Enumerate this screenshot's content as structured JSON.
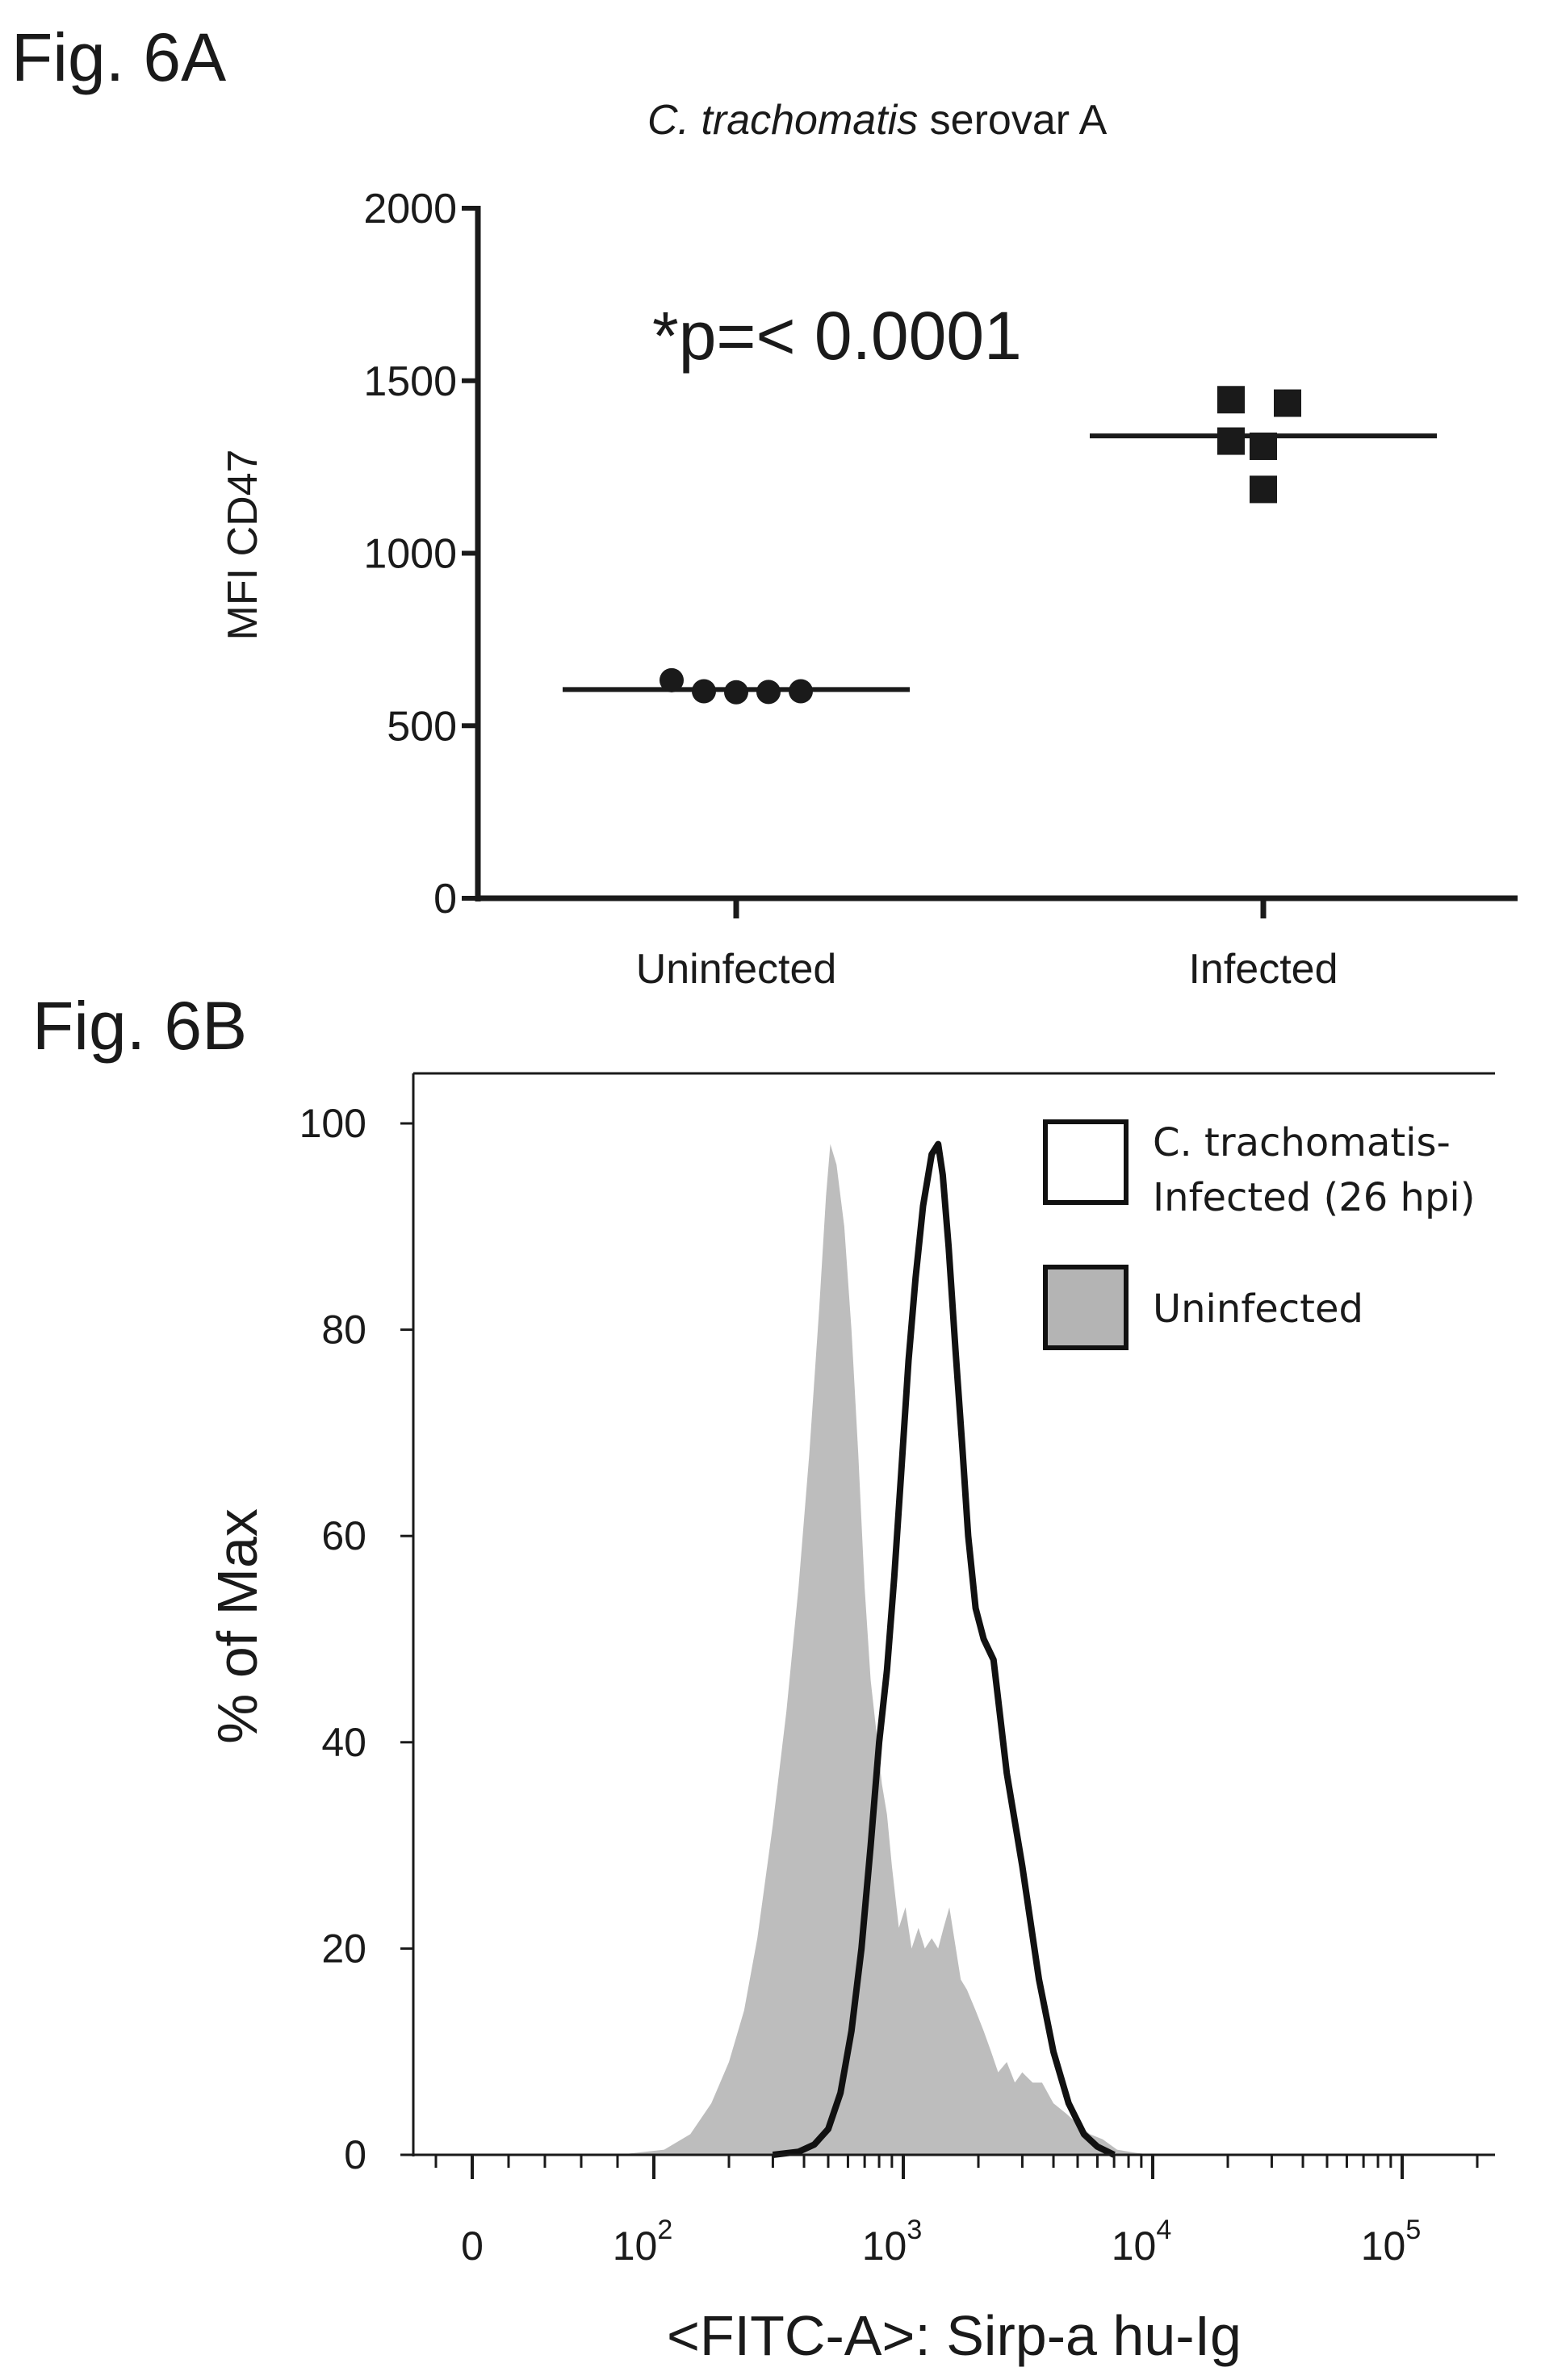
{
  "figure_a_label": "Fig. 6A",
  "figure_b_label": "Fig. 6B",
  "chart_data": [
    {
      "type": "scatter",
      "title_italic": "C. trachomatis",
      "title_rest": " serovar A",
      "ylabel": "MFI CD47",
      "ylim": [
        0,
        2000
      ],
      "yticks": [
        "0",
        "500",
        "1000",
        "1500",
        "2000"
      ],
      "categories": [
        "Uninfected",
        "Infected"
      ],
      "annotation": "*p=< 0.0001",
      "series": [
        {
          "category": "Uninfected",
          "marker": "circle",
          "mean": 605,
          "points": [
            {
              "x": -0.16,
              "y": 632
            },
            {
              "x": -0.08,
              "y": 600
            },
            {
              "x": 0.0,
              "y": 597
            },
            {
              "x": 0.08,
              "y": 598
            },
            {
              "x": 0.16,
              "y": 600
            }
          ]
        },
        {
          "category": "Infected",
          "marker": "square",
          "mean": 1340,
          "points": [
            {
              "x": -0.08,
              "y": 1445
            },
            {
              "x": 0.06,
              "y": 1435
            },
            {
              "x": -0.08,
              "y": 1325
            },
            {
              "x": 0.0,
              "y": 1310
            },
            {
              "x": 0.0,
              "y": 1185
            }
          ]
        }
      ],
      "grid": false
    },
    {
      "type": "area",
      "xscale": "biexponential",
      "xlabel": "<FITC-A>: Sirp-a hu-Ig",
      "ylabel": "% of Max",
      "ylim": [
        0,
        100
      ],
      "yticks": [
        "0",
        "20",
        "40",
        "60",
        "80",
        "100"
      ],
      "xticks": [
        {
          "value": 0,
          "base": "0",
          "exp": ""
        },
        {
          "value": 100,
          "base": "10",
          "exp": "2"
        },
        {
          "value": 1000,
          "base": "10",
          "exp": "3"
        },
        {
          "value": 10000,
          "base": "10",
          "exp": "4"
        },
        {
          "value": 100000,
          "base": "10",
          "exp": "5"
        }
      ],
      "legend": [
        {
          "label_line1": "C. trachomatis-",
          "label_line2": "Infected (26 hpi)",
          "fill": "#ffffff",
          "stroke": "#111111"
        },
        {
          "label_line1": "Uninfected",
          "label_line2": "",
          "fill": "#b4b4b4",
          "stroke": "#111111"
        }
      ],
      "legend_position": "top-right",
      "series": [
        {
          "name": "Uninfected",
          "style": "filled",
          "color": "#bdbdbd",
          "points": [
            [
              80,
              0
            ],
            [
              110,
              0.5
            ],
            [
              140,
              2
            ],
            [
              170,
              5
            ],
            [
              200,
              9
            ],
            [
              230,
              14
            ],
            [
              260,
              21
            ],
            [
              300,
              32
            ],
            [
              340,
              43
            ],
            [
              380,
              55
            ],
            [
              420,
              68
            ],
            [
              460,
              82
            ],
            [
              490,
              93
            ],
            [
              510,
              98
            ],
            [
              540,
              96
            ],
            [
              580,
              90
            ],
            [
              620,
              80
            ],
            [
              660,
              68
            ],
            [
              700,
              55
            ],
            [
              740,
              46
            ],
            [
              780,
              41
            ],
            [
              820,
              36
            ],
            [
              860,
              33
            ],
            [
              900,
              28
            ],
            [
              960,
              22
            ],
            [
              1020,
              24
            ],
            [
              1080,
              20
            ],
            [
              1150,
              22
            ],
            [
              1220,
              20
            ],
            [
              1300,
              21
            ],
            [
              1380,
              20
            ],
            [
              1450,
              22
            ],
            [
              1530,
              24
            ],
            [
              1600,
              21
            ],
            [
              1700,
              17
            ],
            [
              1800,
              16
            ],
            [
              1950,
              14
            ],
            [
              2100,
              12
            ],
            [
              2250,
              10
            ],
            [
              2400,
              8
            ],
            [
              2600,
              9
            ],
            [
              2800,
              7
            ],
            [
              3000,
              8
            ],
            [
              3300,
              7
            ],
            [
              3600,
              7
            ],
            [
              4000,
              5
            ],
            [
              4500,
              4
            ],
            [
              5000,
              3
            ],
            [
              5600,
              2
            ],
            [
              6300,
              1.5
            ],
            [
              7200,
              0.5
            ],
            [
              8500,
              0.2
            ],
            [
              10000,
              0
            ]
          ]
        },
        {
          "name": "C. trachomatis-Infected (26 hpi)",
          "style": "outline",
          "color": "#111111",
          "points": [
            [
              300,
              0
            ],
            [
              380,
              0.3
            ],
            [
              440,
              1
            ],
            [
              500,
              2.5
            ],
            [
              560,
              6
            ],
            [
              620,
              12
            ],
            [
              680,
              20
            ],
            [
              740,
              30
            ],
            [
              800,
              40
            ],
            [
              860,
              47
            ],
            [
              920,
              56
            ],
            [
              980,
              66
            ],
            [
              1050,
              77
            ],
            [
              1120,
              85
            ],
            [
              1200,
              92
            ],
            [
              1300,
              97
            ],
            [
              1380,
              98
            ],
            [
              1440,
              95
            ],
            [
              1520,
              88
            ],
            [
              1620,
              78
            ],
            [
              1720,
              69
            ],
            [
              1820,
              60
            ],
            [
              1950,
              53
            ],
            [
              2100,
              50
            ],
            [
              2300,
              48
            ],
            [
              2600,
              37
            ],
            [
              3000,
              28
            ],
            [
              3500,
              17
            ],
            [
              4000,
              10
            ],
            [
              4600,
              5
            ],
            [
              5300,
              2
            ],
            [
              6000,
              0.8
            ],
            [
              7000,
              0
            ]
          ]
        }
      ]
    }
  ]
}
